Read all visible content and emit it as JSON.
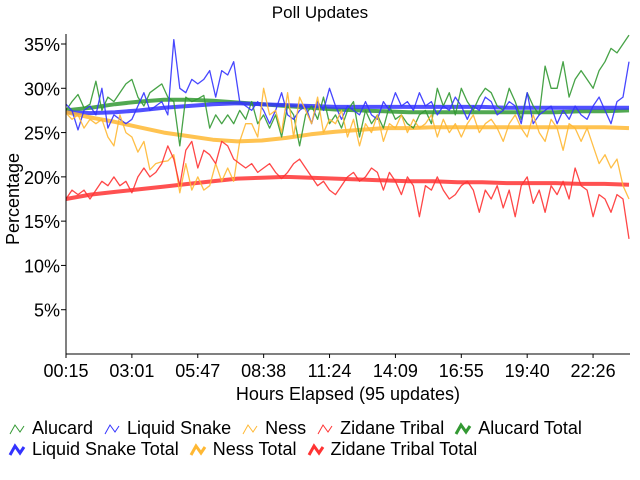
{
  "chart_data": {
    "type": "line",
    "title": "Poll Updates",
    "xlabel": "Hours Elapsed (95 updates)",
    "ylabel": "Percentage",
    "x_ticks": [
      "00:15",
      "03:01",
      "05:47",
      "08:38",
      "11:24",
      "14:09",
      "16:55",
      "19:40",
      "22:26"
    ],
    "y_ticks": [
      "5%",
      "10%",
      "15%",
      "20%",
      "25%",
      "30%",
      "35%"
    ],
    "y_tick_values": [
      5,
      10,
      15,
      20,
      25,
      30,
      35
    ],
    "ylim": [
      0,
      35.5
    ],
    "grid": false,
    "legend_position": "bottom",
    "series": [
      {
        "name": "Alucard",
        "color": "#339933",
        "style": "thin",
        "values": [
          27.5,
          28.5,
          29.3,
          27.8,
          28.2,
          30.8,
          27.5,
          29,
          28.5,
          29.5,
          30.5,
          31,
          29,
          28,
          29.5,
          30,
          30.5,
          29,
          28.5,
          23.5,
          29,
          28.5,
          28.8,
          29.2,
          25.5,
          27,
          26,
          27,
          26,
          27.5,
          26.5,
          28.5,
          26,
          27,
          25.5,
          27,
          24.5,
          28,
          27,
          23.5,
          27,
          28,
          26.5,
          29,
          26,
          27,
          25.5,
          27.5,
          28.5,
          24.5,
          27.5,
          26,
          27,
          25.5,
          28,
          26.5,
          27,
          26,
          25.5,
          27,
          27.5,
          26,
          30,
          28,
          29.5,
          27,
          30,
          28.5,
          27.5,
          29,
          30,
          29.5,
          28,
          27.5,
          30,
          28.5,
          26.5,
          29.5,
          28,
          27,
          32.5,
          30,
          30,
          33,
          29,
          31,
          32,
          31,
          30,
          32,
          33,
          34.5,
          34,
          35,
          36
        ]
      },
      {
        "name": "Liquid Snake",
        "color": "#3333ff",
        "style": "thin",
        "values": [
          28.2,
          27.5,
          25.3,
          27.5,
          28,
          27,
          30,
          25.5,
          27,
          26.5,
          26,
          26.5,
          28,
          29.5,
          27.5,
          28,
          28.5,
          27,
          35.5,
          30,
          29.5,
          31,
          30.5,
          31,
          32,
          29,
          32,
          31.5,
          33,
          28.5,
          28,
          27.5,
          28.5,
          27.5,
          26,
          27.5,
          29.5,
          27,
          26.5,
          27.5,
          28,
          26,
          28.5,
          27.5,
          30,
          28,
          26.5,
          28,
          27.5,
          27,
          28.5,
          27,
          26.5,
          28.5,
          27.5,
          29.5,
          28,
          28.5,
          27.5,
          29.5,
          28,
          28.5,
          27,
          28,
          27.5,
          29,
          28,
          26.5,
          28,
          27.5,
          29,
          28.5,
          27,
          27.5,
          28.5,
          28,
          26,
          29.5,
          26,
          27,
          27.5,
          28,
          26,
          27.5,
          26.5,
          28,
          27,
          26.5,
          28,
          29,
          27.5,
          26,
          28.5,
          29,
          33
        ]
      },
      {
        "name": "Ness",
        "color": "#ffb833",
        "style": "thin",
        "values": [
          27.2,
          26.5,
          27,
          25.5,
          26.5,
          26,
          26.5,
          24.5,
          23.5,
          27,
          25,
          24.5,
          22.8,
          24,
          20.8,
          21.5,
          21.7,
          21.8,
          22.5,
          18.2,
          21.5,
          18.5,
          20,
          18.5,
          19,
          21.5,
          19.5,
          21,
          19.5,
          24,
          26,
          26,
          24.5,
          30,
          27,
          27.5,
          25,
          29.5,
          24.5,
          29,
          27.5,
          26,
          29,
          25,
          26.5,
          26,
          27.5,
          24.5,
          26.5,
          23.5,
          26,
          25,
          27,
          24,
          26,
          25.5,
          27,
          25,
          26.5,
          25.5,
          26,
          27,
          24.5,
          26.5,
          25,
          26,
          24.5,
          26,
          27,
          25,
          26,
          26.5,
          25.5,
          24,
          26,
          27,
          25.5,
          24.5,
          27,
          25,
          24,
          26.5,
          25.5,
          23,
          26,
          25.5,
          24,
          25.5,
          23.5,
          21.5,
          22.5,
          21,
          22,
          19,
          17.5
        ]
      },
      {
        "name": "Zidane Tribal",
        "color": "#ff3333",
        "style": "thin",
        "values": [
          17.5,
          18.5,
          18,
          18.5,
          17.5,
          18.5,
          19.5,
          19,
          20,
          19,
          19.5,
          18.2,
          20,
          21,
          20,
          20.5,
          21.5,
          23.5,
          22,
          19,
          23,
          24,
          21,
          23,
          22.5,
          21.5,
          24,
          23.5,
          22,
          21.5,
          21,
          21.5,
          20.5,
          21,
          21.5,
          20.5,
          19.8,
          20.5,
          21.5,
          22,
          21,
          20,
          19,
          19.5,
          18.5,
          18,
          19,
          20,
          20.5,
          19.5,
          20,
          21,
          20.5,
          18.5,
          20.5,
          19.5,
          18,
          20,
          19,
          15.5,
          19,
          18.5,
          20,
          18.5,
          17.5,
          18,
          19,
          19.5,
          18.5,
          16,
          18.5,
          17.5,
          19,
          16.5,
          18.5,
          15.5,
          19,
          20,
          17,
          18.5,
          16,
          19,
          18,
          19.5,
          17.5,
          21,
          19,
          18.5,
          15.5,
          18,
          17.5,
          16,
          18,
          17.5,
          13
        ]
      },
      {
        "name": "Alucard Total",
        "color": "#339933",
        "style": "thick",
        "values": [
          27.5,
          27.8,
          28.2,
          28.5,
          28.7,
          28.7,
          28.6,
          28.4,
          28.2,
          28.0,
          27.8,
          27.6,
          27.5,
          27.4,
          27.3,
          27.3,
          27.3,
          27.3,
          27.3,
          27.3,
          27.3,
          27.4,
          27.4,
          27.5
        ]
      },
      {
        "name": "Liquid Snake Total",
        "color": "#3333ff",
        "style": "thick",
        "values": [
          27.3,
          27.2,
          27.3,
          27.5,
          27.8,
          28.0,
          28.2,
          28.3,
          28.2,
          28.1,
          28.0,
          27.9,
          27.9,
          27.9,
          27.9,
          27.9,
          27.9,
          27.9,
          27.8,
          27.8,
          27.8,
          27.8,
          27.8,
          27.8
        ]
      },
      {
        "name": "Ness Total",
        "color": "#ffb833",
        "style": "thick",
        "values": [
          27.3,
          26.7,
          26.2,
          25.6,
          25.0,
          24.6,
          24.2,
          24.0,
          24.1,
          24.4,
          24.8,
          25.1,
          25.3,
          25.5,
          25.5,
          25.6,
          25.6,
          25.6,
          25.6,
          25.6,
          25.6,
          25.6,
          25.6,
          25.5
        ]
      },
      {
        "name": "Zidane Tribal Total",
        "color": "#ff3333",
        "style": "thick",
        "values": [
          17.5,
          18.0,
          18.3,
          18.6,
          18.9,
          19.2,
          19.5,
          19.8,
          19.9,
          20.0,
          19.9,
          19.8,
          19.7,
          19.6,
          19.5,
          19.5,
          19.4,
          19.4,
          19.3,
          19.3,
          19.3,
          19.2,
          19.2,
          19.1
        ]
      }
    ]
  }
}
